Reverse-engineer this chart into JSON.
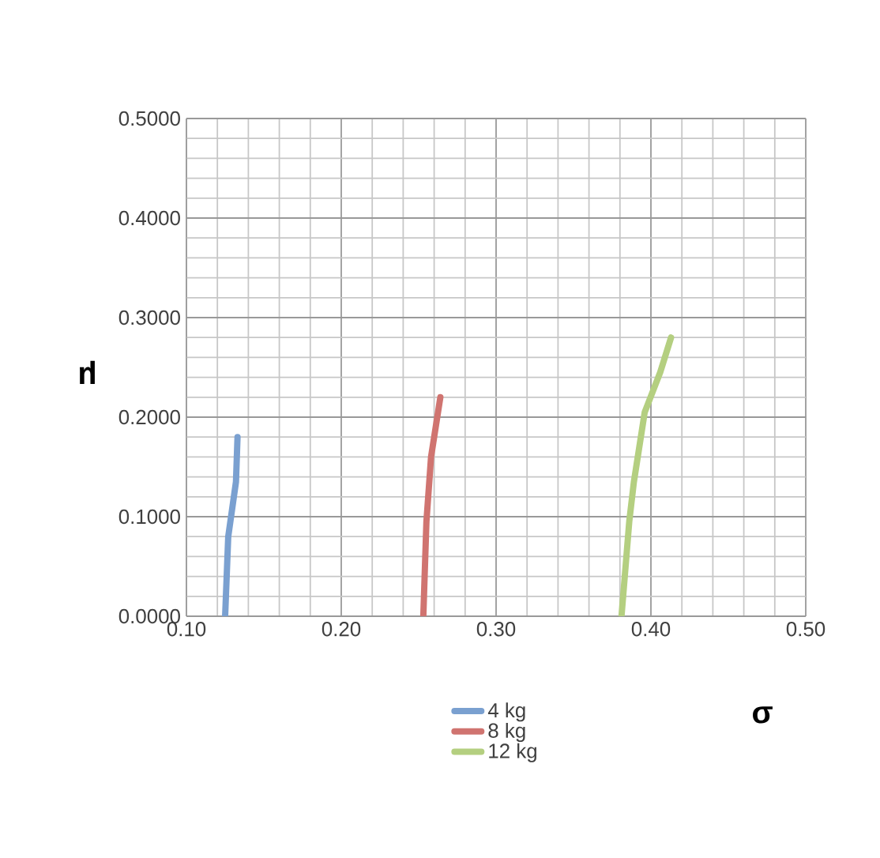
{
  "chart_data": {
    "type": "line",
    "xlabel": "σ",
    "ylabel": "μ",
    "xlim": [
      0.1,
      0.5
    ],
    "ylim": [
      0,
      0.5
    ],
    "xticks": [
      {
        "value": 0.1,
        "label": "0.10"
      },
      {
        "value": 0.2,
        "label": "0.20"
      },
      {
        "value": 0.3,
        "label": "0.30"
      },
      {
        "value": 0.4,
        "label": "0.40"
      },
      {
        "value": 0.5,
        "label": "0.50"
      }
    ],
    "yticks": [
      {
        "value": 0,
        "label": "0.0000"
      },
      {
        "value": 0.1,
        "label": "0.1000"
      },
      {
        "value": 0.2,
        "label": "0.2000"
      },
      {
        "value": 0.3,
        "label": "0.3000"
      },
      {
        "value": 0.4,
        "label": "0.4000"
      },
      {
        "value": 0.5,
        "label": "0.5000"
      }
    ],
    "grid": true,
    "legend": "bottom",
    "marker": "none",
    "line_style": "solid",
    "series": [
      {
        "name": "4 kg",
        "color": "#7aa0d0",
        "x": [
          0.125,
          0.127,
          0.132,
          0.133
        ],
        "values": [
          0,
          0.08,
          0.135,
          0.18
        ]
      },
      {
        "name": "8 kg",
        "color": "#d07470",
        "x": [
          0.253,
          0.255,
          0.258,
          0.264
        ],
        "values": [
          0,
          0.095,
          0.16,
          0.22
        ]
      },
      {
        "name": "12 kg",
        "color": "#b4cf80",
        "x": [
          0.381,
          0.386,
          0.389,
          0.396,
          0.406,
          0.413
        ],
        "values": [
          0,
          0.095,
          0.135,
          0.205,
          0.245,
          0.28
        ]
      }
    ]
  }
}
